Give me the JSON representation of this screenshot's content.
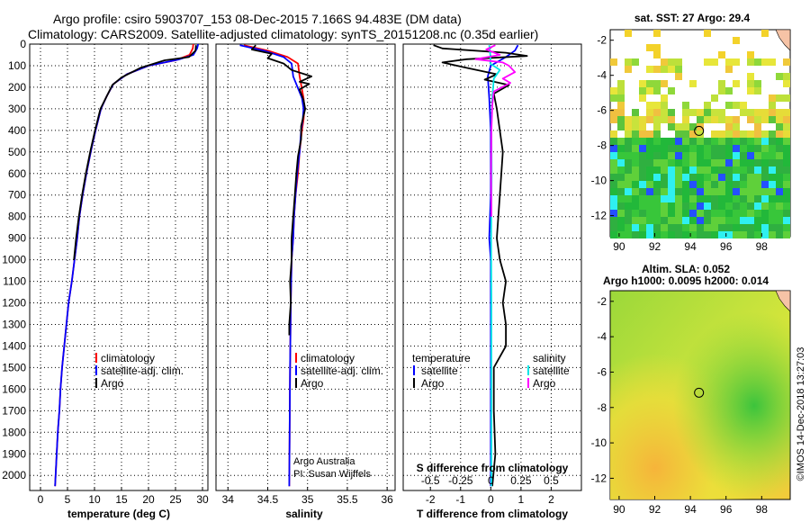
{
  "header": {
    "title_line1": "Argo profile: csiro 5903707_153 08-Dec-2015 7.166S 94.483E (DM data)",
    "title_line2": "Climatology: CARS2009. Satellite-adjusted climatology: synTS_20151208.nc (0.35d earlier)"
  },
  "credit": "©IMOS 14-Dec-2018 13:27:03",
  "colors": {
    "climatology": "#ff0000",
    "satellite": "#0000ff",
    "argo": "#000000",
    "sal_satellite": "#00e5e5",
    "sal_argo": "#ff00ff"
  },
  "chart_data": [
    {
      "id": "temperature",
      "type": "line",
      "xlabel": "temperature (deg C)",
      "ylabel": "",
      "xlim": [
        -2,
        31
      ],
      "ylim": [
        2070,
        0
      ],
      "x_ticks": [
        0,
        5,
        10,
        15,
        20,
        25,
        30
      ],
      "x_tick_labels": [
        "0",
        "5",
        "10",
        "15",
        "20",
        "25",
        "30"
      ],
      "y_ticks": [
        0,
        100,
        200,
        300,
        400,
        500,
        600,
        700,
        800,
        900,
        1000,
        1100,
        1200,
        1300,
        1400,
        1500,
        1600,
        1700,
        1800,
        1900,
        2000
      ],
      "y_tick_labels": [
        "0",
        "100",
        "200",
        "300",
        "400",
        "500",
        "600",
        "700",
        "800",
        "900",
        "1000",
        "1100",
        "1200",
        "1300",
        "1400",
        "1500",
        "1600",
        "1700",
        "1800",
        "1900",
        "2000"
      ],
      "grid": true,
      "legend": {
        "position": "bottom-right",
        "entries": [
          "climatology",
          "satellite-adj. clim.",
          "Argo"
        ]
      },
      "series": [
        {
          "name": "climatology",
          "color": "#ff0000",
          "points": [
            [
              28.3,
              0
            ],
            [
              28.2,
              20
            ],
            [
              27.6,
              50
            ],
            [
              25,
              75
            ],
            [
              20,
              100
            ],
            [
              16,
              140
            ],
            [
              13.5,
              185
            ],
            [
              12.3,
              240
            ],
            [
              11.2,
              300
            ],
            [
              10.2,
              400
            ],
            [
              9.3,
              500
            ],
            [
              8.5,
              600
            ],
            [
              7.8,
              700
            ],
            [
              7.2,
              800
            ],
            [
              6.8,
              900
            ],
            [
              6.3,
              1000
            ],
            [
              5.8,
              1100
            ],
            [
              5.2,
              1200
            ],
            [
              4.8,
              1300
            ],
            [
              4.4,
              1400
            ],
            [
              4,
              1500
            ],
            [
              3.7,
              1600
            ],
            [
              3.5,
              1700
            ],
            [
              3.2,
              1800
            ],
            [
              3,
              1900
            ],
            [
              2.8,
              2000
            ],
            [
              2.7,
              2050
            ]
          ]
        },
        {
          "name": "satellite-adj. clim.",
          "color": "#0000ff",
          "points": [
            [
              29.2,
              0
            ],
            [
              29,
              20
            ],
            [
              28.3,
              50
            ],
            [
              25.5,
              72
            ],
            [
              20,
              100
            ],
            [
              16,
              140
            ],
            [
              13.5,
              185
            ],
            [
              12.3,
              240
            ],
            [
              11.2,
              300
            ],
            [
              10.2,
              400
            ],
            [
              9.3,
              500
            ],
            [
              8.5,
              600
            ],
            [
              7.8,
              700
            ],
            [
              7.2,
              800
            ],
            [
              6.8,
              900
            ],
            [
              6.3,
              1000
            ],
            [
              5.8,
              1100
            ],
            [
              5.2,
              1200
            ],
            [
              4.8,
              1300
            ],
            [
              4.4,
              1400
            ],
            [
              4,
              1500
            ],
            [
              3.7,
              1600
            ],
            [
              3.5,
              1700
            ],
            [
              3.2,
              1800
            ],
            [
              3,
              1900
            ],
            [
              2.8,
              2000
            ],
            [
              2.7,
              2050
            ]
          ]
        },
        {
          "name": "Argo",
          "color": "#000000",
          "points": [
            [
              28.8,
              5
            ],
            [
              28.7,
              30
            ],
            [
              27.5,
              60
            ],
            [
              23,
              75
            ],
            [
              18.5,
              110
            ],
            [
              15,
              155
            ],
            [
              13.3,
              190
            ],
            [
              12.2,
              245
            ],
            [
              11.1,
              300
            ],
            [
              10.1,
              400
            ],
            [
              9.2,
              500
            ],
            [
              8.4,
              600
            ],
            [
              7.7,
              700
            ],
            [
              7.1,
              800
            ],
            [
              6.6,
              900
            ],
            [
              6.2,
              1000
            ]
          ]
        }
      ]
    },
    {
      "id": "salinity",
      "type": "line",
      "xlabel": "salinity",
      "ylabel": "",
      "xlim": [
        33.85,
        36.1
      ],
      "ylim": [
        2070,
        0
      ],
      "x_ticks": [
        34,
        34.5,
        35,
        35.5,
        36
      ],
      "x_tick_labels": [
        "34",
        "34.5",
        "35",
        "35.5",
        "36"
      ],
      "grid": true,
      "legend": {
        "position": "bottom-right",
        "entries": [
          "climatology",
          "satellite-adj. clim.",
          "Argo"
        ]
      },
      "annotation": [
        "Argo Australia",
        "PI: Susan Wijffels"
      ],
      "series": [
        {
          "name": "climatology",
          "color": "#ff0000",
          "points": [
            [
              34.2,
              5
            ],
            [
              34.5,
              30
            ],
            [
              34.75,
              60
            ],
            [
              34.88,
              90
            ],
            [
              34.9,
              150
            ],
            [
              34.95,
              250
            ],
            [
              34.96,
              300
            ],
            [
              34.95,
              350
            ],
            [
              34.93,
              400
            ],
            [
              34.9,
              500
            ],
            [
              34.88,
              600
            ],
            [
              34.85,
              700
            ],
            [
              34.83,
              800
            ],
            [
              34.82,
              900
            ],
            [
              34.8,
              1000
            ],
            [
              34.79,
              1200
            ],
            [
              34.78,
              1500
            ],
            [
              34.77,
              2050
            ]
          ]
        },
        {
          "name": "satellite-adj. clim.",
          "color": "#0000ff",
          "points": [
            [
              34.15,
              5
            ],
            [
              34.45,
              30
            ],
            [
              34.7,
              60
            ],
            [
              34.8,
              90
            ],
            [
              34.82,
              150
            ],
            [
              34.93,
              250
            ],
            [
              34.95,
              300
            ],
            [
              34.94,
              350
            ],
            [
              34.92,
              400
            ],
            [
              34.9,
              500
            ],
            [
              34.87,
              600
            ],
            [
              34.85,
              700
            ],
            [
              34.83,
              800
            ],
            [
              34.82,
              900
            ],
            [
              34.8,
              1000
            ],
            [
              34.79,
              1200
            ],
            [
              34.78,
              1500
            ],
            [
              34.77,
              2050
            ]
          ]
        },
        {
          "name": "Argo",
          "color": "#000000",
          "points": [
            [
              34.35,
              5
            ],
            [
              34.3,
              25
            ],
            [
              34.55,
              45
            ],
            [
              34.5,
              65
            ],
            [
              34.7,
              90
            ],
            [
              34.8,
              120
            ],
            [
              35.05,
              150
            ],
            [
              34.9,
              175
            ],
            [
              35.02,
              185
            ],
            [
              34.9,
              210
            ],
            [
              34.95,
              260
            ],
            [
              34.97,
              300
            ],
            [
              34.92,
              380
            ],
            [
              34.92,
              440
            ],
            [
              34.88,
              520
            ],
            [
              34.86,
              600
            ],
            [
              34.84,
              700
            ],
            [
              34.82,
              800
            ],
            [
              34.8,
              900
            ],
            [
              34.8,
              1000
            ],
            [
              34.78,
              1100
            ],
            [
              34.79,
              1200
            ],
            [
              34.77,
              1300
            ],
            [
              34.77,
              1350
            ]
          ]
        }
      ]
    },
    {
      "id": "differences",
      "type": "line",
      "xlabel": "T difference from climatology",
      "ylabel": "",
      "title_bottom": "S difference from climatology",
      "xlim": [
        -2.9,
        3
      ],
      "ylim": [
        2070,
        0
      ],
      "x_ticks": [
        -2,
        -1,
        0,
        1,
        2
      ],
      "x_tick_labels": [
        "-2",
        "-1",
        "0",
        "1",
        "2"
      ],
      "x2_ticks": [
        -0.5,
        -0.25,
        0,
        0.25,
        0.5
      ],
      "x2_tick_labels": [
        "-0.5",
        "-0.25",
        "0",
        "0.25",
        "0.5"
      ],
      "grid": true,
      "legend_left": {
        "title": "temperature",
        "entries": [
          "satellite",
          "Argo"
        ]
      },
      "legend_right": {
        "title": "salinity",
        "entries": [
          "satellite",
          "Argo"
        ]
      },
      "series": [
        {
          "name": "satellite",
          "group": "temperature",
          "color": "#0000ff",
          "points": [
            [
              0.9,
              5
            ],
            [
              0.8,
              30
            ],
            [
              0.5,
              60
            ],
            [
              0,
              100
            ],
            [
              -0.1,
              150
            ],
            [
              -0.05,
              250
            ],
            [
              0,
              400
            ],
            [
              0,
              700
            ],
            [
              -0.05,
              900
            ],
            [
              0,
              1000
            ],
            [
              0,
              1500
            ],
            [
              0,
              2050
            ]
          ]
        },
        {
          "name": "Argo",
          "group": "temperature",
          "color": "#000000",
          "points": [
            [
              -1.9,
              5
            ],
            [
              -1.6,
              20
            ],
            [
              0.5,
              40
            ],
            [
              1.2,
              55
            ],
            [
              -0.8,
              70
            ],
            [
              -1.6,
              85
            ],
            [
              -0.8,
              110
            ],
            [
              0.2,
              140
            ],
            [
              -0.2,
              165
            ],
            [
              0.6,
              190
            ],
            [
              0.1,
              230
            ],
            [
              0.2,
              300
            ],
            [
              0.4,
              500
            ],
            [
              0.3,
              700
            ],
            [
              0.2,
              900
            ],
            [
              0.3,
              1000
            ],
            [
              0.5,
              1100
            ],
            [
              0.4,
              1200
            ],
            [
              0.5,
              1300
            ],
            [
              0.5,
              1400
            ],
            [
              0.1,
              1500
            ],
            [
              0.1,
              1700
            ],
            [
              0.15,
              1900
            ],
            [
              0.05,
              2050
            ]
          ]
        },
        {
          "name": "satellite",
          "group": "salinity",
          "color": "#00e5e5",
          "points": [
            [
              -0.05,
              5
            ],
            [
              -0.03,
              30
            ],
            [
              -0.01,
              60
            ],
            [
              -0.02,
              90
            ],
            [
              0.3,
              120
            ],
            [
              0.1,
              160
            ],
            [
              0.05,
              250
            ],
            [
              0.02,
              350
            ],
            [
              0.03,
              600
            ],
            [
              0.01,
              900
            ],
            [
              0.02,
              1200
            ],
            [
              0.02,
              1600
            ],
            [
              0.02,
              2050
            ]
          ]
        },
        {
          "name": "Argo",
          "group": "salinity",
          "color": "#ff00ff",
          "points": [
            [
              0.15,
              5
            ],
            [
              -0.15,
              25
            ],
            [
              0.3,
              50
            ],
            [
              -0.5,
              70
            ],
            [
              0.4,
              85
            ],
            [
              0.6,
              100
            ],
            [
              0.8,
              130
            ],
            [
              0.4,
              160
            ],
            [
              0.65,
              180
            ],
            [
              0.1,
              220
            ],
            [
              0.05,
              280
            ],
            [
              0.02,
              400
            ],
            [
              0.01,
              600
            ],
            [
              0.02,
              800
            ]
          ]
        }
      ]
    },
    {
      "id": "sst_map",
      "type": "heatmap",
      "title": "sat. SST: 27 Argo: 29.4",
      "xlim": [
        89.5,
        99.6
      ],
      "ylim": [
        -13.2,
        -1.4
      ],
      "x_ticks": [
        90,
        92,
        94,
        96,
        98
      ],
      "x_tick_labels": [
        "90",
        "92",
        "94",
        "96",
        "98"
      ],
      "y_ticks": [
        -2,
        -4,
        -6,
        -8,
        -10,
        -12
      ],
      "y_tick_labels": [
        "-2",
        "-4",
        "-6",
        "-8",
        "-10",
        "-12"
      ],
      "argo_position": [
        94.483,
        -7.166
      ]
    },
    {
      "id": "sla_map",
      "type": "heatmap",
      "title": "Altim. SLA: 0.052",
      "subtitle": "Argo h1000: 0.0095 h2000: 0.014",
      "xlim": [
        89.5,
        99.6
      ],
      "ylim": [
        -13.2,
        -1.4
      ],
      "x_ticks": [
        90,
        92,
        94,
        96,
        98
      ],
      "x_tick_labels": [
        "90",
        "92",
        "94",
        "96",
        "98"
      ],
      "y_ticks": [
        -2,
        -4,
        -6,
        -8,
        -10,
        -12
      ],
      "y_tick_labels": [
        "-2",
        "-4",
        "-6",
        "-8",
        "-10",
        "-12"
      ],
      "argo_position": [
        94.483,
        -7.166
      ]
    }
  ]
}
